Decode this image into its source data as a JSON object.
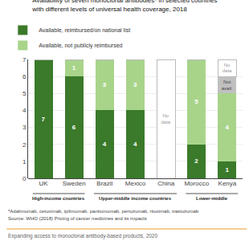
{
  "chart_data": {
    "type": "bar",
    "stacked": true,
    "title": "Availability of seven monoclonal antibodies* in selected countries",
    "subtitle": "with different levels of universal health coverage, 2018",
    "categories": [
      "UK",
      "Sweden",
      "Brazil",
      "Mexico",
      "China",
      "Morocco",
      "Kenya"
    ],
    "series": [
      {
        "name": "Available, reimbursed/on national list",
        "color": "#3a7a2a",
        "values": [
          7,
          6,
          4,
          4,
          0,
          2,
          1
        ]
      },
      {
        "name": "Available, not publicly reimbursed",
        "color": "#a8d48a",
        "values": [
          0,
          1,
          3,
          3,
          0,
          5,
          4
        ]
      },
      {
        "color": "#c0c0c0",
        "values": [
          0,
          0,
          0,
          0,
          0,
          0,
          1
        ],
        "value_labels": [
          null,
          null,
          null,
          null,
          null,
          null,
          "Not\navail."
        ]
      },
      {
        "color": "#bbbbbb",
        "values": [
          0,
          0,
          0,
          0,
          7,
          0,
          1
        ],
        "value_labels": [
          null,
          null,
          null,
          null,
          "No\ndata",
          null,
          "No\ndata"
        ]
      }
    ],
    "groups": [
      {
        "text": "High-income countries",
        "categories": [
          "UK",
          "Sweden"
        ]
      },
      {
        "text": "Upper-middle income countries",
        "categories": [
          "Brazil",
          "Mexico",
          "China"
        ]
      },
      {
        "text": "Lower-middle",
        "categories": [
          "Morocco",
          "Kenya"
        ]
      }
    ],
    "annotations": [
      "*Adalimumab, cetuximab, ipilimumab, panitumumab, pertuzumab, rituximab, trastuzumab",
      "Source: WHO (2018) Pricing of cancer medicines and its impacts",
      "Expanding access to monoclonal antibody-based products, 2020"
    ],
    "ylim": [
      0,
      7
    ],
    "yticks": [
      0,
      1,
      2,
      3,
      4,
      5,
      6,
      7
    ],
    "grid": true,
    "data_labels": true,
    "legend": "top"
  }
}
